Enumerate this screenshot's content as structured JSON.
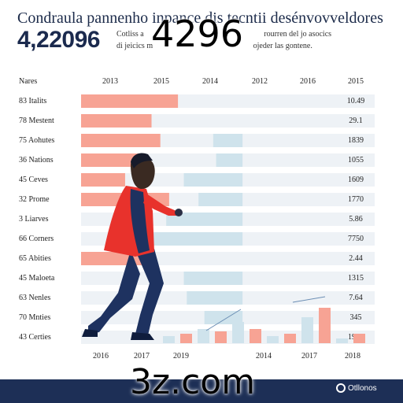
{
  "header": {
    "title": "Condraula pannenho inpance dis tecntii desénvovveldores",
    "big_number": "4,22096",
    "subtitle_line1": "Cotliss a",
    "subtitle_line2": "di jeicics m",
    "subtitle_right1": "rourren del jo asocics",
    "subtitle_right2": "ojeder las gontene."
  },
  "watermarks": {
    "top": "4296",
    "bottom": "3z.com"
  },
  "footer": {
    "logo_text": "Otllonos"
  },
  "colors": {
    "coral": "#f7a394",
    "coral_dark": "#f26b5a",
    "lightblue": "#cfe3ec",
    "row_bg": "#eef2f6",
    "navy": "#1d2f56",
    "person_red": "#e8322c",
    "person_navy": "#1e3260"
  },
  "chart_data": {
    "type": "bar",
    "category_header": "Nares",
    "top_axis_labels": [
      "2013",
      "2015",
      "2014",
      "2012",
      "2016",
      "2015"
    ],
    "bottom_axis_labels": [
      "2016",
      "2017",
      "2019",
      "2014",
      "2017",
      "2018"
    ],
    "categories": [
      "83 Italits",
      "78 Mestent",
      "75 Aohutes",
      "36 Nations",
      "45 Ceves",
      "32 Prome",
      "3 Liarves",
      "66 Corners",
      "65 Abities",
      "45 Maloeta",
      "63 Nenles",
      "70 Mnties",
      "43 Certies"
    ],
    "right_values": [
      "10.49",
      "29.1",
      "1839",
      "1055",
      "1609",
      "1770",
      "5.86",
      "7750",
      "2.44",
      "1315",
      "7.64",
      "345",
      "1969"
    ],
    "series": [
      {
        "color": "coral",
        "values": [
          0.33,
          0.24,
          0.27,
          0.21,
          0.15,
          0.3,
          0.0,
          0.0,
          0.23,
          0.0,
          0.0,
          0.0,
          0.0
        ]
      },
      {
        "color": "lightblue",
        "values": [
          0.0,
          0.0,
          0.1,
          0.09,
          0.2,
          0.15,
          0.26,
          0.39,
          0.0,
          0.2,
          0.19,
          0.13,
          0.0
        ]
      }
    ],
    "mini_bars": {
      "heights": [
        0.15,
        0.2,
        0.3,
        0.25,
        0.45,
        0.3,
        0.15,
        0.2,
        0.55,
        0.75,
        0.1,
        0.2
      ],
      "colors": [
        "lightblue",
        "coral",
        "lightblue",
        "coral",
        "lightblue",
        "coral",
        "lightblue",
        "coral",
        "lightblue",
        "coral",
        "lightblue",
        "coral"
      ]
    }
  }
}
